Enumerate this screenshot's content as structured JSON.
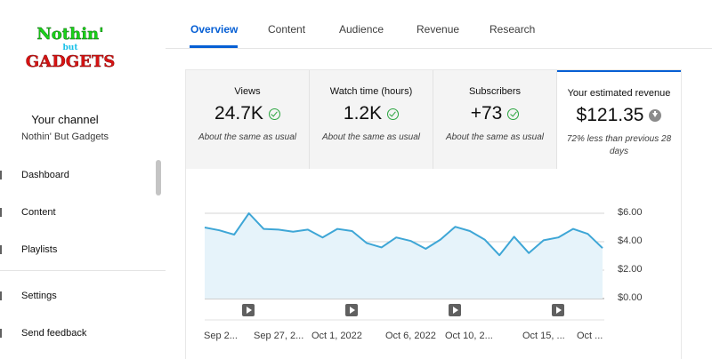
{
  "sidebar": {
    "logo": {
      "line1": "Nothin'",
      "line2": "but",
      "line3": "GADGETS"
    },
    "channel_heading": "Your channel",
    "channel_name": "Nothin' But Gadgets",
    "items": [
      {
        "label": "Dashboard"
      },
      {
        "label": "Content"
      },
      {
        "label": "Playlists"
      },
      {
        "label": "Settings"
      },
      {
        "label": "Send feedback"
      }
    ]
  },
  "tabs": [
    {
      "label": "Overview",
      "active": true
    },
    {
      "label": "Content"
    },
    {
      "label": "Audience"
    },
    {
      "label": "Revenue"
    },
    {
      "label": "Research"
    }
  ],
  "metrics": [
    {
      "label": "Views",
      "value": "24.7K",
      "note": "About the same as usual",
      "icon": "check-icon"
    },
    {
      "label": "Watch time (hours)",
      "value": "1.2K",
      "note": "About the same as usual",
      "icon": "check-icon"
    },
    {
      "label": "Subscribers",
      "value": "+73",
      "note": "About the same as usual",
      "icon": "check-icon"
    },
    {
      "label": "Your estimated revenue",
      "value": "$121.35",
      "note": "72% less than previous 28 days",
      "icon": "arrow-down-icon",
      "selected": true
    }
  ],
  "chart_data": {
    "type": "area",
    "series": [
      {
        "values": [
          5.0,
          4.8,
          4.5,
          6.0,
          4.9,
          4.85,
          4.7,
          4.85,
          4.3,
          4.9,
          4.75,
          3.9,
          3.6,
          4.3,
          4.05,
          3.5,
          4.15,
          5.05,
          4.75,
          4.15,
          3.05,
          4.35,
          3.2,
          4.1,
          4.3,
          4.9,
          4.55,
          3.55
        ]
      }
    ],
    "x_tick_labels": [
      "Sep 2...",
      "Sep 27, 2...",
      "Oct 1, 2022",
      "Oct 6, 2022",
      "Oct 10, 2...",
      "Oct 15, ...",
      "Oct ..."
    ],
    "y_tick_labels": [
      "$6.00",
      "$4.00",
      "$2.00",
      "$0.00"
    ],
    "ylim": [
      0,
      6
    ],
    "video_markers": 4,
    "line_color": "#3ea6d6",
    "fill_color": "#e6f3fa"
  },
  "colors": {
    "accent": "#065fd4",
    "positive": "#2ba640"
  }
}
